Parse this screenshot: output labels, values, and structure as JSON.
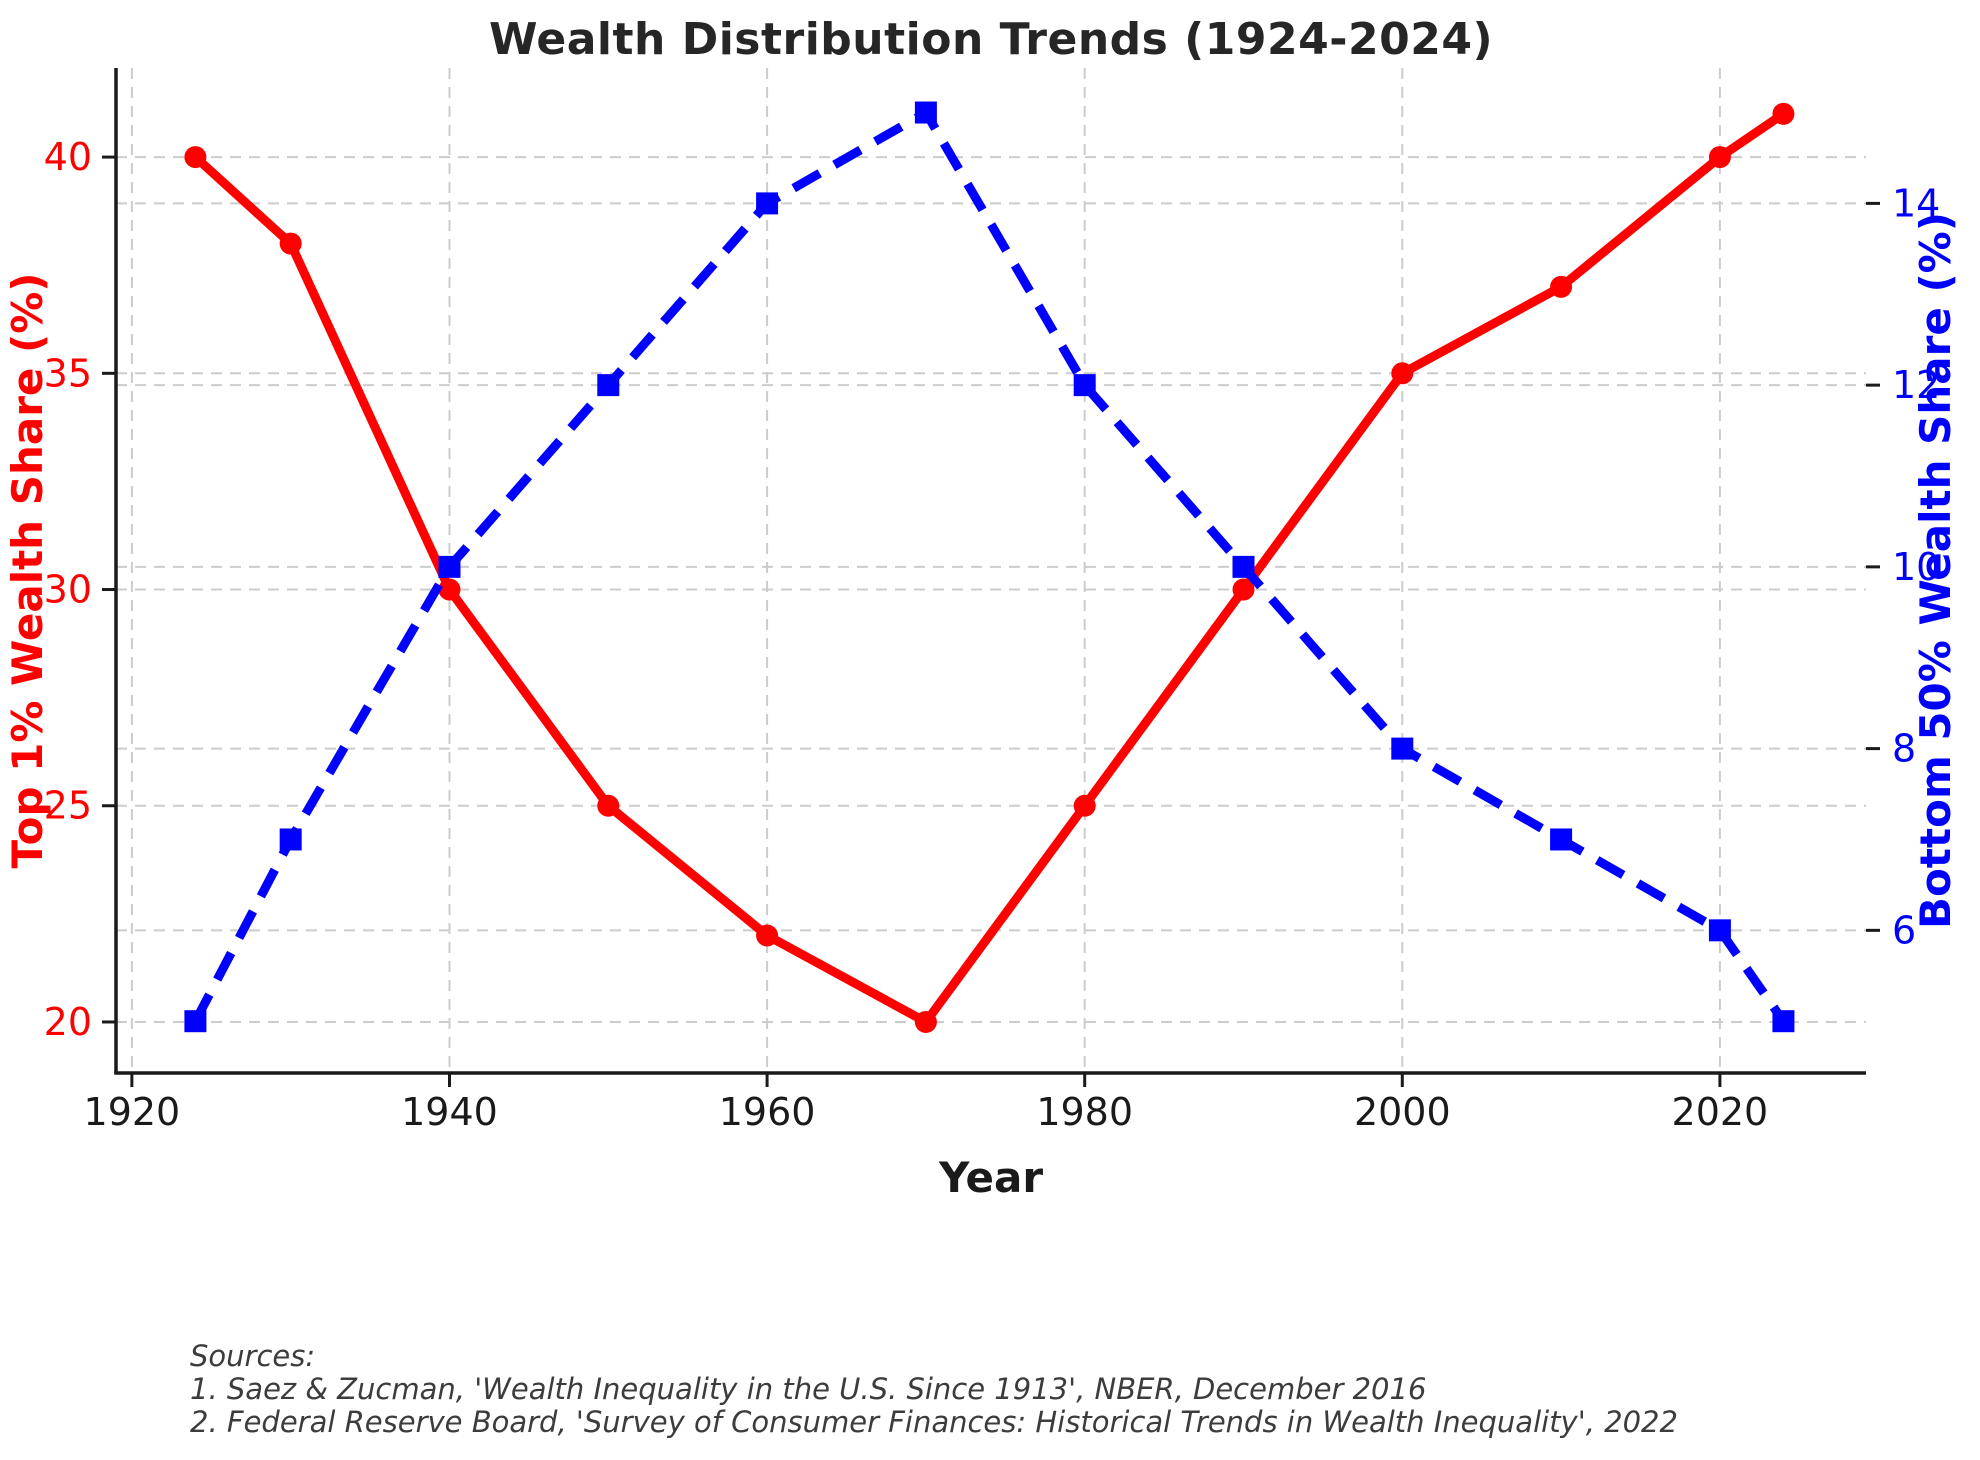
{
  "title": "Wealth Distribution Trends (1924-2024)",
  "footer": {
    "lines": [
      "Sources:",
      "1. Saez & Zucman, 'Wealth Inequality in the U.S. Since 1913', NBER, December 2016",
      "2. Federal Reserve Board, 'Survey of Consumer Finances: Historical Trends in Wealth Inequality', 2022"
    ]
  },
  "chart_data": {
    "type": "line",
    "title": "Wealth Distribution Trends (1924-2024)",
    "xlabel": "Year",
    "x_ticks": [
      1920,
      1940,
      1960,
      1980,
      2000,
      2020
    ],
    "xlim": [
      1919,
      2029.2
    ],
    "grid": true,
    "legend_position": "none",
    "left_axis": {
      "label": "Top 1% Wealth Share (%)",
      "color": "#ff0000",
      "ticks": [
        20,
        25,
        30,
        35,
        40
      ],
      "range": [
        18.82,
        42.06
      ]
    },
    "right_axis": {
      "label": "Bottom 50% Wealth Share (%)",
      "color": "#0000ff",
      "ticks": [
        6,
        8,
        10,
        12,
        14
      ],
      "range": [
        4.43,
        15.49
      ]
    },
    "x": [
      1924,
      1930,
      1940,
      1950,
      1960,
      1970,
      1980,
      1990,
      2000,
      2010,
      2020,
      2024
    ],
    "series": [
      {
        "name": "Top 1% Wealth Share (%)",
        "axis": "left",
        "color": "#ff0000",
        "line_style": "solid",
        "marker": "circle",
        "values": [
          40,
          38,
          30,
          25,
          22,
          20,
          25,
          30,
          35,
          37,
          40,
          41
        ]
      },
      {
        "name": "Bottom 50% Wealth Share (%)",
        "axis": "right",
        "color": "#0000ff",
        "line_style": "dashed",
        "marker": "square",
        "values": [
          5,
          7,
          10,
          12,
          14,
          15,
          12,
          10,
          8,
          7,
          6,
          5
        ]
      }
    ],
    "styles": {
      "grid_color": "#cccccc",
      "spine_color": "#1a1a1a",
      "x_tick_label_color": "#1a1a1a",
      "background": "#ffffff"
    }
  }
}
